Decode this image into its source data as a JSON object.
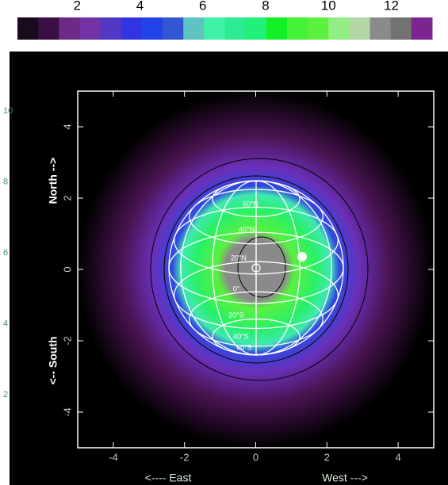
{
  "chart_data": [
    {
      "type": "colorbar",
      "colors": [
        "#1a0a1e",
        "#3a1044",
        "#6a2a86",
        "#7232a6",
        "#5236c4",
        "#3234e2",
        "#2242ea",
        "#3456d2",
        "#5ec4c2",
        "#40f2a6",
        "#2eea92",
        "#22f07a",
        "#12f028",
        "#46f236",
        "#5cf040",
        "#92ee84",
        "#b2d6a6",
        "#8a8a8a",
        "#727272",
        "#7c2490"
      ],
      "xlim": [
        0.1,
        13.3
      ],
      "xticks": [
        2,
        4,
        6,
        8,
        10,
        12
      ]
    },
    {
      "type": "image",
      "xlim": [
        -5,
        5
      ],
      "ylim": [
        -5,
        5
      ],
      "xticks": [
        -4,
        -2,
        0,
        2,
        4
      ],
      "yticks": [
        -4,
        -2,
        0,
        2,
        4
      ],
      "y2lim": [
        0.5,
        10.56
      ],
      "y2ticks": [
        2,
        4,
        6,
        8,
        10
      ],
      "x_label_left": "<---- East",
      "x_label_right": "West --->",
      "y_label_top": "North -->",
      "y_label_bottom": "<-- South",
      "annotations": [
        "60°N",
        "40°N",
        "20°N",
        "0°",
        "20°S",
        "40°S",
        "60°S"
      ]
    }
  ]
}
